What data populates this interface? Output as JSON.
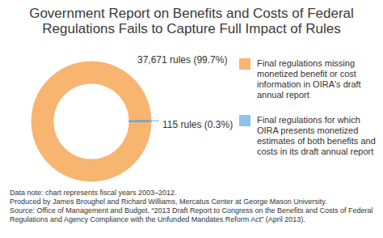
{
  "chart_data": {
    "type": "pie",
    "title": "Government Report on Benefits and Costs of Federal Regulations Fails to Capture Full Impact of Rules",
    "categories": [
      "Final regulations missing monetized benefit or cost information in OIRA's draft annual report",
      "Final regulations for which OIRA presents monetized estimates of both benefits and costs in its draft annual report"
    ],
    "values": [
      37671,
      115
    ],
    "value_labels": [
      "37,671 rules (99.7%)",
      "115 rules (0.3%)"
    ],
    "colors": [
      "#f8b56f",
      "#8ec3ea"
    ],
    "data_labels": true,
    "legend": "right",
    "notes": [
      "Data note: chart represents fiscal years 2003–2012.",
      "Produced by James Broughel and Richard Williams, Mercatus Center at George Mason University.",
      "Source: Office of Management and Budget, “2013 Draft Report to Congress on the Benefits and Costs of Federal Regulations and Agency Compliance with the Unfunded Mandates Reform Act” (April 2013)."
    ]
  }
}
